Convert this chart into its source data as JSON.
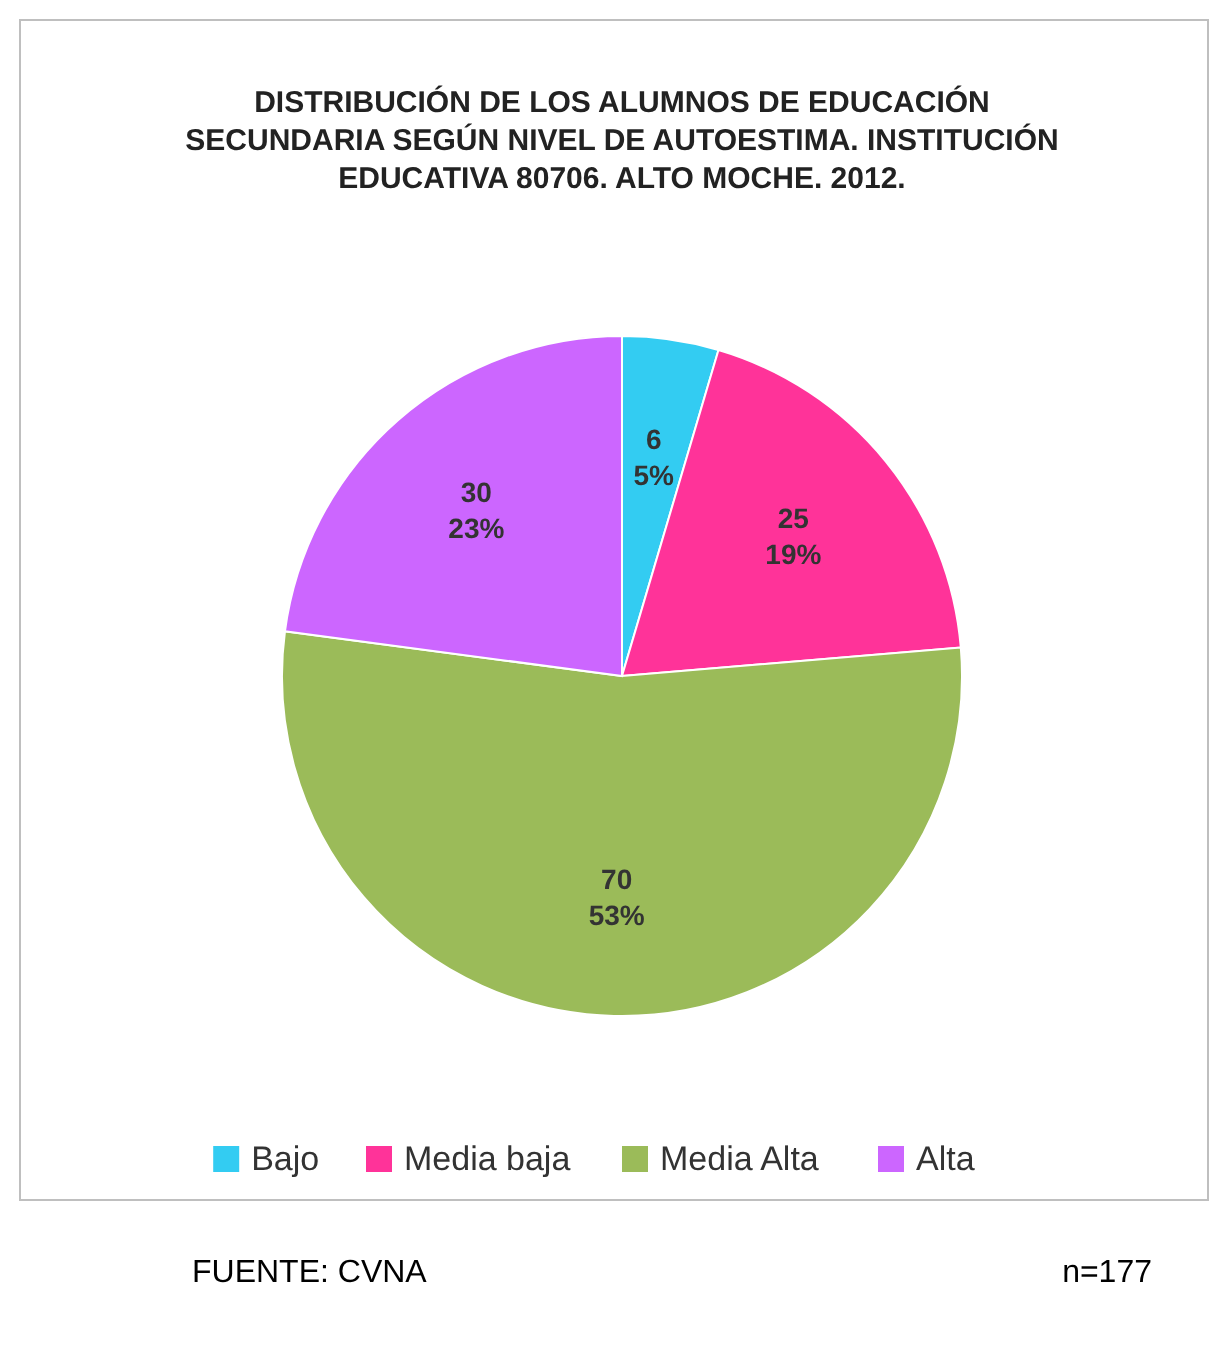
{
  "chart_data": {
    "type": "pie",
    "title": "DISTRIBUCIÓN DE LOS ALUMNOS DE EDUCACIÓN\nSECUNDARIA SEGÚN NIVEL DE AUTOESTIMA. INSTITUCIÓN\nEDUCATIVA 80706. ALTO MOCHE. 2012.",
    "categories": [
      "Bajo",
      "Media baja",
      "Media Alta",
      "Alta"
    ],
    "values": [
      6,
      25,
      70,
      30
    ],
    "colors": [
      "#33ccf2",
      "#ff3399",
      "#9bbb59",
      "#cc66ff"
    ],
    "value_labels": [
      "6\n5%",
      "25\n19%",
      "70\n53%",
      "30\n23%"
    ],
    "legend": "bottom",
    "annotations": [
      "FUENTE: CVNA",
      "n=177"
    ]
  }
}
